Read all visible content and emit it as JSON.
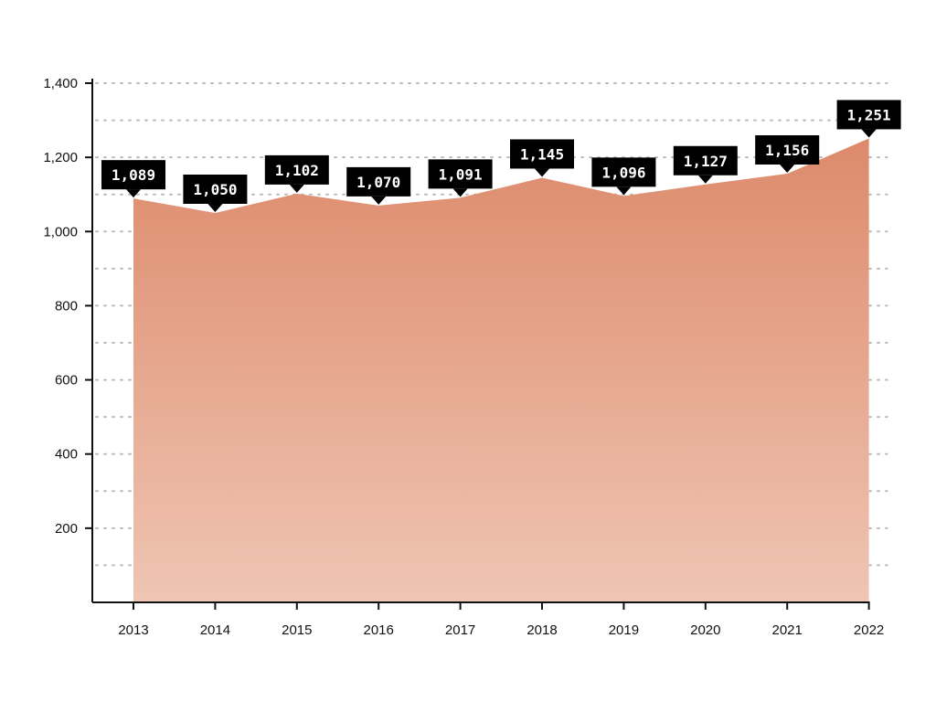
{
  "chart_data": {
    "type": "area",
    "title": "",
    "xlabel": "",
    "ylabel": "",
    "categories": [
      "2013",
      "2014",
      "2015",
      "2016",
      "2017",
      "2018",
      "2019",
      "2020",
      "2021",
      "2022"
    ],
    "values": [
      1089,
      1050,
      1102,
      1070,
      1091,
      1145,
      1096,
      1127,
      1156,
      1251
    ],
    "data_labels": [
      "1,089",
      "1,050",
      "1,102",
      "1,070",
      "1,091",
      "1,145",
      "1,096",
      "1,127",
      "1,156",
      "1,251"
    ],
    "ylim": [
      0,
      1400
    ],
    "y_ticks": [
      200,
      400,
      600,
      800,
      1000,
      1200,
      1400
    ],
    "y_tick_labels": [
      "200",
      "400",
      "600",
      "800",
      "1,000",
      "1,200",
      "1,400"
    ],
    "grid_values": [
      100,
      200,
      300,
      400,
      500,
      600,
      700,
      800,
      900,
      1000,
      1100,
      1200,
      1300,
      1400
    ],
    "grid": true,
    "grid_style": "dotted",
    "legend": "none",
    "colors": {
      "area_top": "#dd8a6b",
      "area_bottom": "#efc5b3",
      "label_bg": "#000000",
      "label_text": "#ffffff",
      "axis": "#111111",
      "grid": "#bbbbbb"
    }
  }
}
